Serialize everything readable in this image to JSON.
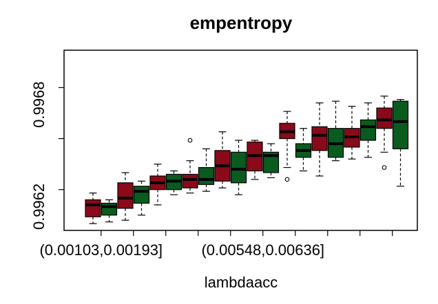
{
  "chart_data": {
    "type": "box",
    "title": "empentropy",
    "xlabel": "lambdaacc",
    "ylabel": "",
    "ylim": [
      0.99606,
      0.99712
    ],
    "y_ticks": [
      0.9962,
      0.9968
    ],
    "y_tick_labels": [
      "0.9962",
      "0.9968"
    ],
    "x_tick_labels": [
      "(0.00103,0.00193]",
      "(0.00548,0.00636]"
    ],
    "x_tick_label_groups": [
      1,
      6
    ],
    "colors": {
      "odd": "#8b0a1a",
      "even": "#0a5c1e",
      "median": "#000000",
      "frame": "#000000"
    },
    "boxes": [
      {
        "min": 0.9961,
        "q1": 0.99614,
        "median": 0.99621,
        "q3": 0.99624,
        "max": 0.99628,
        "outliers": []
      },
      {
        "min": 0.99611,
        "q1": 0.99615,
        "median": 0.9962,
        "q3": 0.99622,
        "max": 0.99624,
        "outliers": []
      },
      {
        "min": 0.99612,
        "q1": 0.99619,
        "median": 0.99625,
        "q3": 0.99634,
        "max": 0.9964,
        "outliers": []
      },
      {
        "min": 0.99615,
        "q1": 0.99622,
        "median": 0.99629,
        "q3": 0.99632,
        "max": 0.99635,
        "outliers": []
      },
      {
        "min": 0.99621,
        "q1": 0.9963,
        "median": 0.99634,
        "q3": 0.99638,
        "max": 0.99645,
        "outliers": []
      },
      {
        "min": 0.99627,
        "q1": 0.9963,
        "median": 0.99635,
        "q3": 0.99639,
        "max": 0.99641,
        "outliers": []
      },
      {
        "min": 0.99628,
        "q1": 0.99631,
        "median": 0.99636,
        "q3": 0.99639,
        "max": 0.99647,
        "outliers": [
          0.99659
        ]
      },
      {
        "min": 0.99629,
        "q1": 0.99633,
        "median": 0.99636,
        "q3": 0.99643,
        "max": 0.99654,
        "outliers": []
      },
      {
        "min": 0.99631,
        "q1": 0.99635,
        "median": 0.99644,
        "q3": 0.99653,
        "max": 0.99664,
        "outliers": []
      },
      {
        "min": 0.99627,
        "q1": 0.99634,
        "median": 0.99642,
        "q3": 0.99652,
        "max": 0.99659,
        "outliers": []
      },
      {
        "min": 0.99636,
        "q1": 0.99641,
        "median": 0.9965,
        "q3": 0.99658,
        "max": 0.99659,
        "outliers": []
      },
      {
        "min": 0.99637,
        "q1": 0.9964,
        "median": 0.9965,
        "q3": 0.99652,
        "max": 0.99657,
        "outliers": []
      },
      {
        "min": 0.99643,
        "q1": 0.9966,
        "median": 0.99664,
        "q3": 0.99669,
        "max": 0.99676,
        "outliers": [
          0.99636
        ]
      },
      {
        "min": 0.99641,
        "q1": 0.99649,
        "median": 0.99653,
        "q3": 0.99657,
        "max": 0.99666,
        "outliers": []
      },
      {
        "min": 0.99638,
        "q1": 0.99653,
        "median": 0.99662,
        "q3": 0.99667,
        "max": 0.99681,
        "outliers": []
      },
      {
        "min": 0.99647,
        "q1": 0.99649,
        "median": 0.99657,
        "q3": 0.99666,
        "max": 0.99682,
        "outliers": []
      },
      {
        "min": 0.99648,
        "q1": 0.99655,
        "median": 0.99661,
        "q3": 0.99666,
        "max": 0.99679,
        "outliers": []
      },
      {
        "min": 0.99649,
        "q1": 0.99659,
        "median": 0.99667,
        "q3": 0.99671,
        "max": 0.99681,
        "outliers": []
      },
      {
        "min": 0.99652,
        "q1": 0.99666,
        "median": 0.99671,
        "q3": 0.99678,
        "max": 0.99685,
        "outliers": [
          0.99643
        ]
      },
      {
        "min": 0.99632,
        "q1": 0.99654,
        "median": 0.9967,
        "q3": 0.99682,
        "max": 0.99683,
        "outliers": []
      }
    ]
  }
}
